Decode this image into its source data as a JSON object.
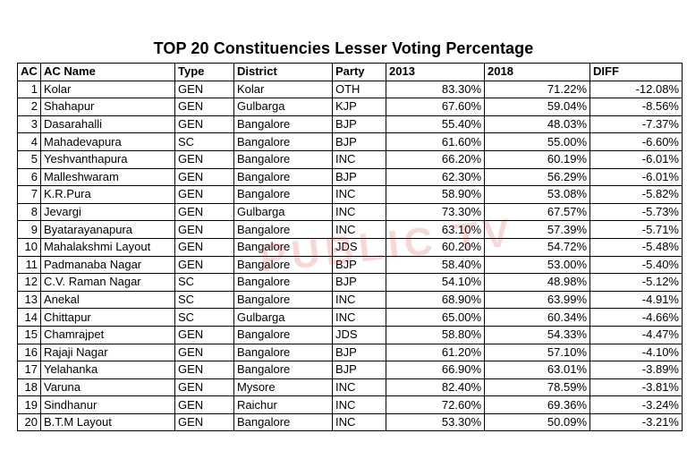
{
  "title": "TOP 20 Constituencies Lesser Voting Percentage",
  "watermark": "PUBLIC TV",
  "watermark_color": "#c82828",
  "headers": {
    "ac": "AC",
    "ac_name": "AC Name",
    "type": "Type",
    "district": "District",
    "party": "Party",
    "y2013": "2013",
    "y2018": "2018",
    "diff": "DIFF"
  },
  "rows": [
    {
      "ac": "1",
      "name": "Kolar",
      "type": "GEN",
      "district": "Kolar",
      "party": "OTH",
      "y2013": "83.30%",
      "y2018": "71.22%",
      "diff": "-12.08%"
    },
    {
      "ac": "2",
      "name": "Shahapur",
      "type": "GEN",
      "district": "Gulbarga",
      "party": "KJP",
      "y2013": "67.60%",
      "y2018": "59.04%",
      "diff": "-8.56%"
    },
    {
      "ac": "3",
      "name": "Dasarahalli",
      "type": "GEN",
      "district": "Bangalore",
      "party": "BJP",
      "y2013": "55.40%",
      "y2018": "48.03%",
      "diff": "-7.37%"
    },
    {
      "ac": "4",
      "name": "Mahadevapura",
      "type": "SC",
      "district": "Bangalore",
      "party": "BJP",
      "y2013": "61.60%",
      "y2018": "55.00%",
      "diff": "-6.60%"
    },
    {
      "ac": "5",
      "name": "Yeshvanthapura",
      "type": "GEN",
      "district": "Bangalore",
      "party": "INC",
      "y2013": "66.20%",
      "y2018": "60.19%",
      "diff": "-6.01%"
    },
    {
      "ac": "6",
      "name": "Malleshwaram",
      "type": "GEN",
      "district": "Bangalore",
      "party": "BJP",
      "y2013": "62.30%",
      "y2018": "56.29%",
      "diff": "-6.01%"
    },
    {
      "ac": "7",
      "name": "K.R.Pura",
      "type": "GEN",
      "district": "Bangalore",
      "party": "INC",
      "y2013": "58.90%",
      "y2018": "53.08%",
      "diff": "-5.82%"
    },
    {
      "ac": "8",
      "name": "Jevargi",
      "type": "GEN",
      "district": "Gulbarga",
      "party": "INC",
      "y2013": "73.30%",
      "y2018": "67.57%",
      "diff": "-5.73%"
    },
    {
      "ac": "9",
      "name": "Byatarayanapura",
      "type": "GEN",
      "district": "Bangalore",
      "party": "INC",
      "y2013": "63.10%",
      "y2018": "57.39%",
      "diff": "-5.71%"
    },
    {
      "ac": "10",
      "name": "Mahalakshmi Layout",
      "type": "GEN",
      "district": "Bangalore",
      "party": "JDS",
      "y2013": "60.20%",
      "y2018": "54.72%",
      "diff": "-5.48%"
    },
    {
      "ac": "11",
      "name": "Padmanaba Nagar",
      "type": "GEN",
      "district": "Bangalore",
      "party": "BJP",
      "y2013": "58.40%",
      "y2018": "53.00%",
      "diff": "-5.40%"
    },
    {
      "ac": "12",
      "name": "C.V. Raman Nagar",
      "type": "SC",
      "district": "Bangalore",
      "party": "BJP",
      "y2013": "54.10%",
      "y2018": "48.98%",
      "diff": "-5.12%"
    },
    {
      "ac": "13",
      "name": "Anekal",
      "type": "SC",
      "district": "Bangalore",
      "party": "INC",
      "y2013": "68.90%",
      "y2018": "63.99%",
      "diff": "-4.91%"
    },
    {
      "ac": "14",
      "name": "Chittapur",
      "type": "SC",
      "district": "Gulbarga",
      "party": "INC",
      "y2013": "65.00%",
      "y2018": "60.34%",
      "diff": "-4.66%"
    },
    {
      "ac": "15",
      "name": "Chamrajpet",
      "type": "GEN",
      "district": "Bangalore",
      "party": "JDS",
      "y2013": "58.80%",
      "y2018": "54.33%",
      "diff": "-4.47%"
    },
    {
      "ac": "16",
      "name": "Rajaji Nagar",
      "type": "GEN",
      "district": "Bangalore",
      "party": "BJP",
      "y2013": "61.20%",
      "y2018": "57.10%",
      "diff": "-4.10%"
    },
    {
      "ac": "17",
      "name": "Yelahanka",
      "type": "GEN",
      "district": "Bangalore",
      "party": "BJP",
      "y2013": "66.90%",
      "y2018": "63.01%",
      "diff": "-3.89%"
    },
    {
      "ac": "18",
      "name": "Varuna",
      "type": "GEN",
      "district": "Mysore",
      "party": "INC",
      "y2013": "82.40%",
      "y2018": "78.59%",
      "diff": "-3.81%"
    },
    {
      "ac": "19",
      "name": "Sindhanur",
      "type": "GEN",
      "district": "Raichur",
      "party": "INC",
      "y2013": "72.60%",
      "y2018": "69.36%",
      "diff": "-3.24%"
    },
    {
      "ac": "20",
      "name": "B.T.M Layout",
      "type": "GEN",
      "district": "Bangalore",
      "party": "INC",
      "y2013": "53.30%",
      "y2018": "50.09%",
      "diff": "-3.21%"
    }
  ]
}
